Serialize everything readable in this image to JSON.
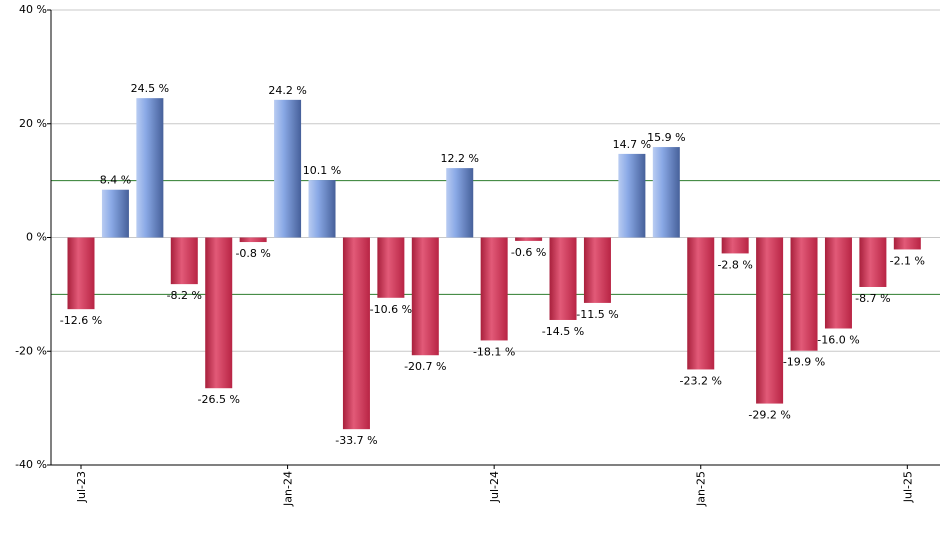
{
  "chart_data": {
    "type": "bar",
    "title": "",
    "xlabel": "",
    "ylabel": "",
    "ylim": [
      -40,
      40
    ],
    "y_ticks": [
      40,
      20,
      0,
      -20,
      -40
    ],
    "y_tick_labels": [
      "40 %",
      "20 %",
      "0 %",
      "-20 %",
      "-40 %"
    ],
    "x_tick_labels": [
      "Jul-23",
      "Jan-24",
      "Jul-24",
      "Jan-25",
      "Jul-25"
    ],
    "x_tick_indices": [
      0,
      6,
      12,
      18,
      24
    ],
    "reference_lines": [
      10,
      -10
    ],
    "grid": true,
    "colors": {
      "positive": "#7f9fdf",
      "negative": "#c8304f",
      "reference_line": "#2e7d2e",
      "grid": "#c8c8c8"
    },
    "categories": [
      "Jul-23",
      "Aug-23",
      "Sep-23",
      "Oct-23",
      "Nov-23",
      "Dec-23",
      "Jan-24",
      "Feb-24",
      "Mar-24",
      "Apr-24",
      "May-24",
      "Jun-24",
      "Jul-24",
      "Aug-24",
      "Sep-24",
      "Oct-24",
      "Nov-24",
      "Dec-24",
      "Jan-25",
      "Feb-25",
      "Mar-25",
      "Apr-25",
      "May-25",
      "Jun-25",
      "Jul-25"
    ],
    "values": [
      -12.6,
      8.4,
      24.5,
      -8.2,
      -26.5,
      -0.8,
      24.2,
      10.1,
      -33.7,
      -10.6,
      -20.7,
      12.2,
      -18.1,
      -0.6,
      -14.5,
      -11.5,
      14.7,
      15.9,
      -23.2,
      -2.8,
      -29.2,
      -19.9,
      -16.0,
      -8.7,
      -2.1
    ],
    "value_labels": [
      "-12.6 %",
      "8.4 %",
      "24.5 %",
      "-8.2 %",
      "-26.5 %",
      "-0.8 %",
      "24.2 %",
      "10.1 %",
      "-33.7 %",
      "-10.6 %",
      "-20.7 %",
      "12.2 %",
      "-18.1 %",
      "-0.6 %",
      "-14.5 %",
      "-11.5 %",
      "14.7 %",
      "15.9 %",
      "-23.2 %",
      "-2.8 %",
      "-29.2 %",
      "-19.9 %",
      "-16.0 %",
      "-8.7 %",
      "-2.1 %"
    ]
  }
}
